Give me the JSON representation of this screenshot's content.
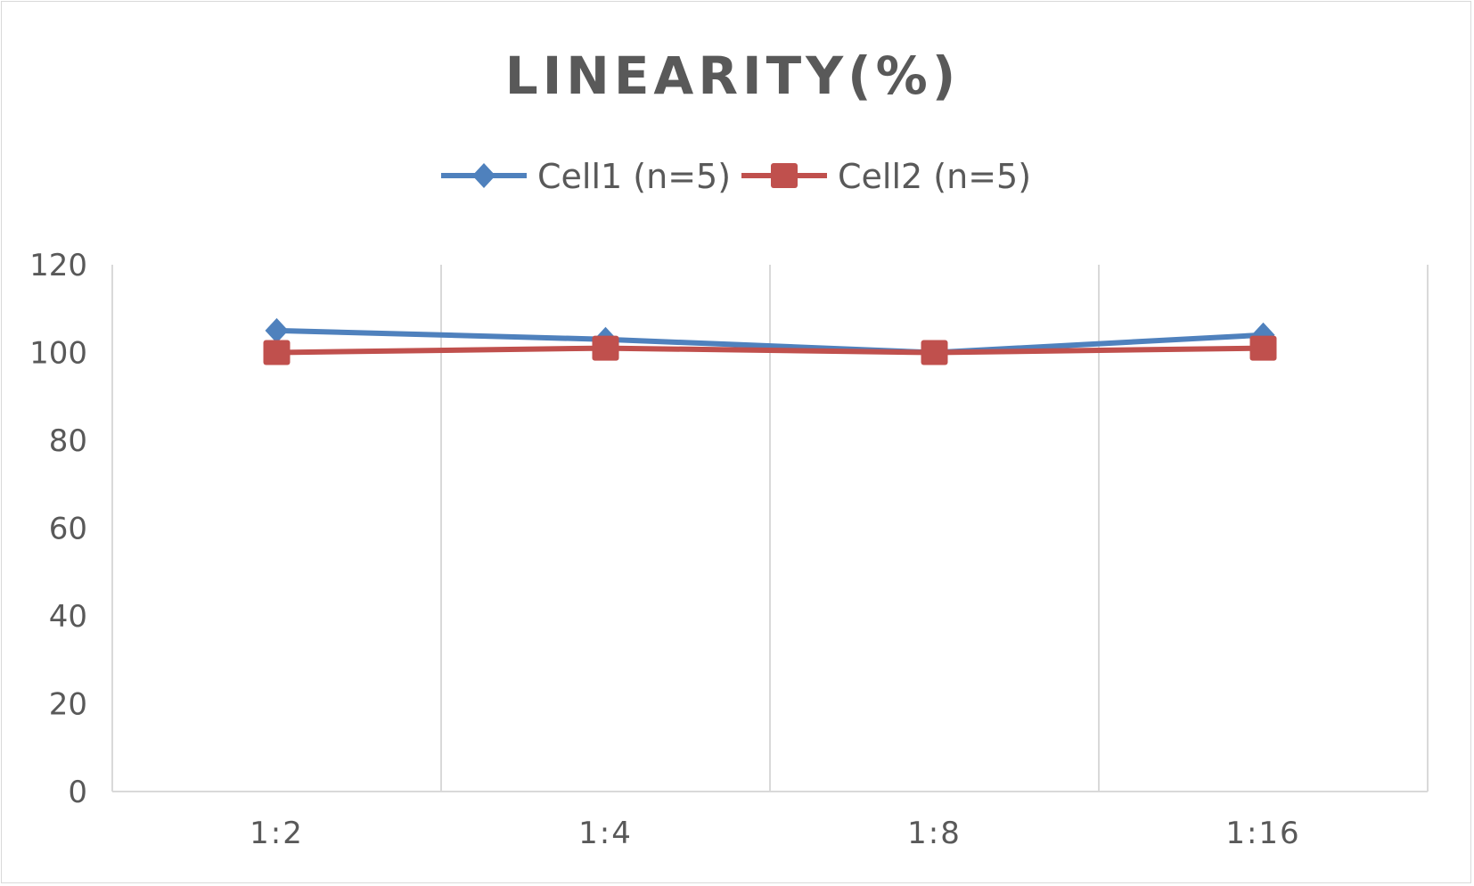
{
  "chart_data": {
    "type": "line",
    "title": "LINEARITY(%)",
    "categories": [
      "1:2",
      "1:4",
      "1:8",
      "1:16"
    ],
    "series": [
      {
        "name": "Cell1 (n=5)",
        "values": [
          105,
          103,
          100,
          104
        ],
        "color": "#4f81bd",
        "marker": "diamond"
      },
      {
        "name": "Cell2 (n=5)",
        "values": [
          100,
          101,
          100,
          101
        ],
        "color": "#c0504d",
        "marker": "square"
      }
    ],
    "ylim": [
      0,
      120
    ],
    "yticks": [
      0,
      20,
      40,
      60,
      80,
      100,
      120
    ],
    "grid": "vertical",
    "legend": "top",
    "xlabel": "",
    "ylabel": ""
  }
}
